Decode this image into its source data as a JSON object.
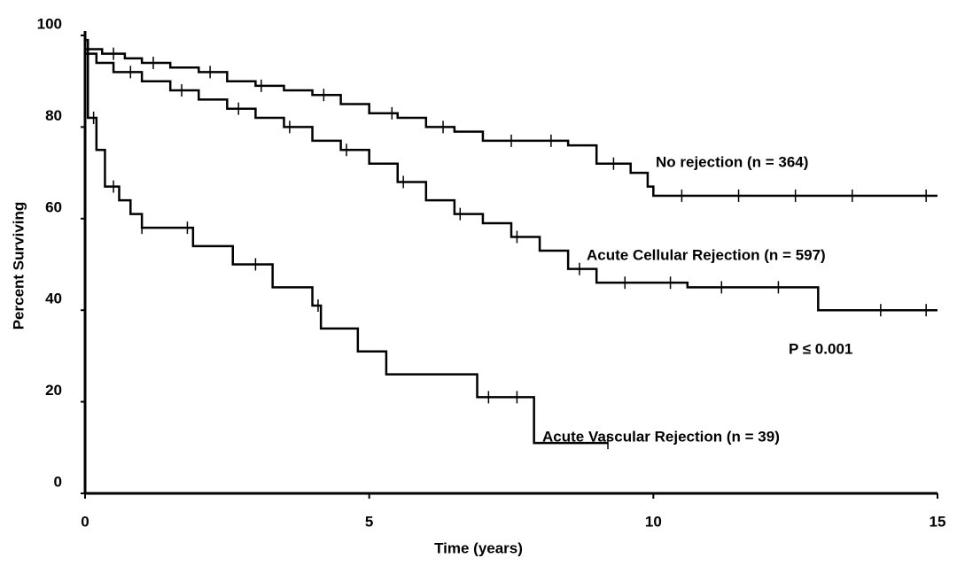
{
  "chart_data": {
    "type": "step",
    "x_label": "Time (years)",
    "y_label": "Percent Surviving",
    "xlim": [
      0,
      15
    ],
    "xticks": [
      0,
      5,
      10,
      15
    ],
    "ylim": [
      0,
      100
    ],
    "yticks": [
      0,
      20,
      40,
      60,
      80,
      100
    ],
    "grid": false,
    "annotations": [
      "P ≤ 0.001"
    ],
    "series": [
      {
        "name": "No rejection (n = 364)",
        "color": "#000000",
        "x": [
          0,
          0.3,
          0.7,
          1,
          1.5,
          2,
          2.5,
          3,
          3.5,
          4,
          4.5,
          5,
          5.5,
          6,
          6.5,
          7,
          8.5,
          9,
          9.6,
          9.9,
          10,
          15
        ],
        "values": [
          97,
          96,
          95,
          94,
          93,
          92,
          90,
          89,
          88,
          87,
          85,
          83,
          82,
          80,
          79,
          77,
          76,
          72,
          70,
          67,
          65,
          65
        ],
        "censored": [
          0.5,
          1.2,
          2.2,
          3.1,
          4.2,
          5.4,
          6.3,
          7.5,
          8.2,
          9.3,
          10.5,
          11.5,
          12.5,
          13.5,
          14.8
        ]
      },
      {
        "name": "Acute Cellular Rejection (n = 597)",
        "color": "#000000",
        "x": [
          0,
          0.2,
          0.5,
          1,
          1.5,
          2,
          2.5,
          3,
          3.5,
          4,
          4.5,
          5,
          5.5,
          6,
          6.5,
          7,
          7.5,
          8,
          8.5,
          9,
          10.6,
          12.9,
          15
        ],
        "values": [
          96,
          94,
          92,
          90,
          88,
          86,
          84,
          82,
          80,
          77,
          75,
          72,
          68,
          64,
          61,
          59,
          56,
          53,
          49,
          46,
          45,
          40,
          40
        ],
        "censored": [
          0.8,
          1.7,
          2.7,
          3.6,
          4.6,
          5.6,
          6.6,
          7.6,
          8.7,
          9.5,
          10.3,
          11.2,
          12.2,
          14,
          14.8
        ]
      },
      {
        "name": "Acute Vascular Rejection (n = 39)",
        "color": "#000000",
        "x": [
          0,
          0.05,
          0.2,
          0.35,
          0.6,
          0.8,
          1,
          1.9,
          2.6,
          3.3,
          4,
          4.15,
          4.8,
          5.3,
          6.9,
          7.9,
          9.2
        ],
        "values": [
          99,
          82,
          75,
          67,
          64,
          61,
          58,
          54,
          50,
          45,
          41,
          36,
          31,
          26,
          21,
          11,
          11
        ],
        "censored": [
          0.15,
          0.5,
          1.0,
          1.8,
          3.0,
          4.1,
          7.1,
          7.6,
          9.2
        ]
      }
    ]
  }
}
